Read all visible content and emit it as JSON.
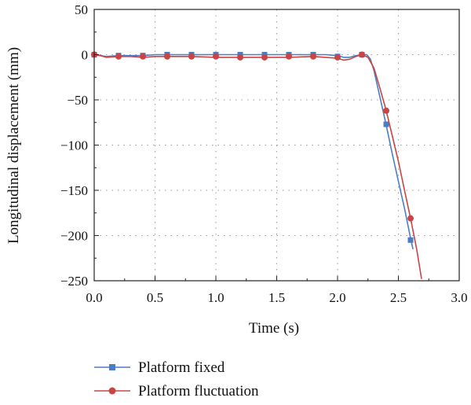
{
  "chart_data": {
    "type": "line",
    "title": "",
    "xlabel": "Time (s)",
    "ylabel": "Longitudinal displacement (mm)",
    "xlim": [
      0.0,
      3.0
    ],
    "ylim": [
      -250,
      50
    ],
    "xticks": [
      "0.0",
      "0.5",
      "1.0",
      "1.5",
      "2.0",
      "2.5",
      "3.0"
    ],
    "yticks": [
      "50",
      "0",
      "−50",
      "−100",
      "−150",
      "−200",
      "−250"
    ],
    "grid": true,
    "legend_position": "bottom",
    "series": [
      {
        "name": "Platform fixed",
        "color": "#4a7ec4",
        "marker": "square",
        "line": [
          [
            0.0,
            0
          ],
          [
            0.05,
            -1
          ],
          [
            0.1,
            -2
          ],
          [
            0.2,
            -1
          ],
          [
            0.3,
            -1
          ],
          [
            0.4,
            -1
          ],
          [
            0.5,
            0
          ],
          [
            0.6,
            0
          ],
          [
            0.8,
            0
          ],
          [
            1.0,
            0
          ],
          [
            1.2,
            0
          ],
          [
            1.4,
            0
          ],
          [
            1.6,
            0
          ],
          [
            1.8,
            0
          ],
          [
            1.9,
            0
          ],
          [
            2.0,
            -1
          ],
          [
            2.05,
            -3
          ],
          [
            2.1,
            -3
          ],
          [
            2.15,
            -1
          ],
          [
            2.2,
            0
          ],
          [
            2.24,
            0
          ],
          [
            2.27,
            -5
          ],
          [
            2.3,
            -18
          ],
          [
            2.35,
            -48
          ],
          [
            2.4,
            -78
          ],
          [
            2.45,
            -110
          ],
          [
            2.5,
            -140
          ],
          [
            2.55,
            -170
          ],
          [
            2.6,
            -203
          ],
          [
            2.62,
            -215
          ]
        ],
        "markers": [
          [
            0.0,
            0
          ],
          [
            0.2,
            -1
          ],
          [
            0.4,
            -1
          ],
          [
            0.6,
            0
          ],
          [
            0.8,
            0
          ],
          [
            1.0,
            0
          ],
          [
            1.2,
            0
          ],
          [
            1.4,
            0
          ],
          [
            1.6,
            0
          ],
          [
            1.8,
            0
          ],
          [
            2.0,
            -2
          ],
          [
            2.2,
            0
          ],
          [
            2.4,
            -77
          ],
          [
            2.6,
            -205
          ]
        ]
      },
      {
        "name": "Platform fluctuation",
        "color": "#c94545",
        "marker": "circle",
        "line": [
          [
            0.0,
            0
          ],
          [
            0.05,
            -1
          ],
          [
            0.1,
            -3
          ],
          [
            0.2,
            -2
          ],
          [
            0.3,
            -2
          ],
          [
            0.4,
            -3
          ],
          [
            0.5,
            -2
          ],
          [
            0.6,
            -2
          ],
          [
            0.8,
            -2
          ],
          [
            1.0,
            -3
          ],
          [
            1.2,
            -3
          ],
          [
            1.4,
            -3
          ],
          [
            1.6,
            -3
          ],
          [
            1.8,
            -2
          ],
          [
            1.9,
            -3
          ],
          [
            2.0,
            -4
          ],
          [
            2.05,
            -6
          ],
          [
            2.1,
            -5
          ],
          [
            2.15,
            -2
          ],
          [
            2.2,
            0
          ],
          [
            2.25,
            -3
          ],
          [
            2.3,
            -15
          ],
          [
            2.35,
            -38
          ],
          [
            2.4,
            -62
          ],
          [
            2.45,
            -90
          ],
          [
            2.5,
            -118
          ],
          [
            2.55,
            -150
          ],
          [
            2.6,
            -181
          ],
          [
            2.65,
            -215
          ],
          [
            2.69,
            -248
          ]
        ],
        "markers": [
          [
            0.0,
            0
          ],
          [
            0.2,
            -2
          ],
          [
            0.4,
            -2
          ],
          [
            0.6,
            -2
          ],
          [
            0.8,
            -2
          ],
          [
            1.0,
            -2
          ],
          [
            1.2,
            -3
          ],
          [
            1.4,
            -3
          ],
          [
            1.6,
            -2
          ],
          [
            1.8,
            -2
          ],
          [
            2.0,
            -3
          ],
          [
            2.2,
            0
          ],
          [
            2.4,
            -62
          ],
          [
            2.6,
            -181
          ]
        ]
      }
    ]
  }
}
